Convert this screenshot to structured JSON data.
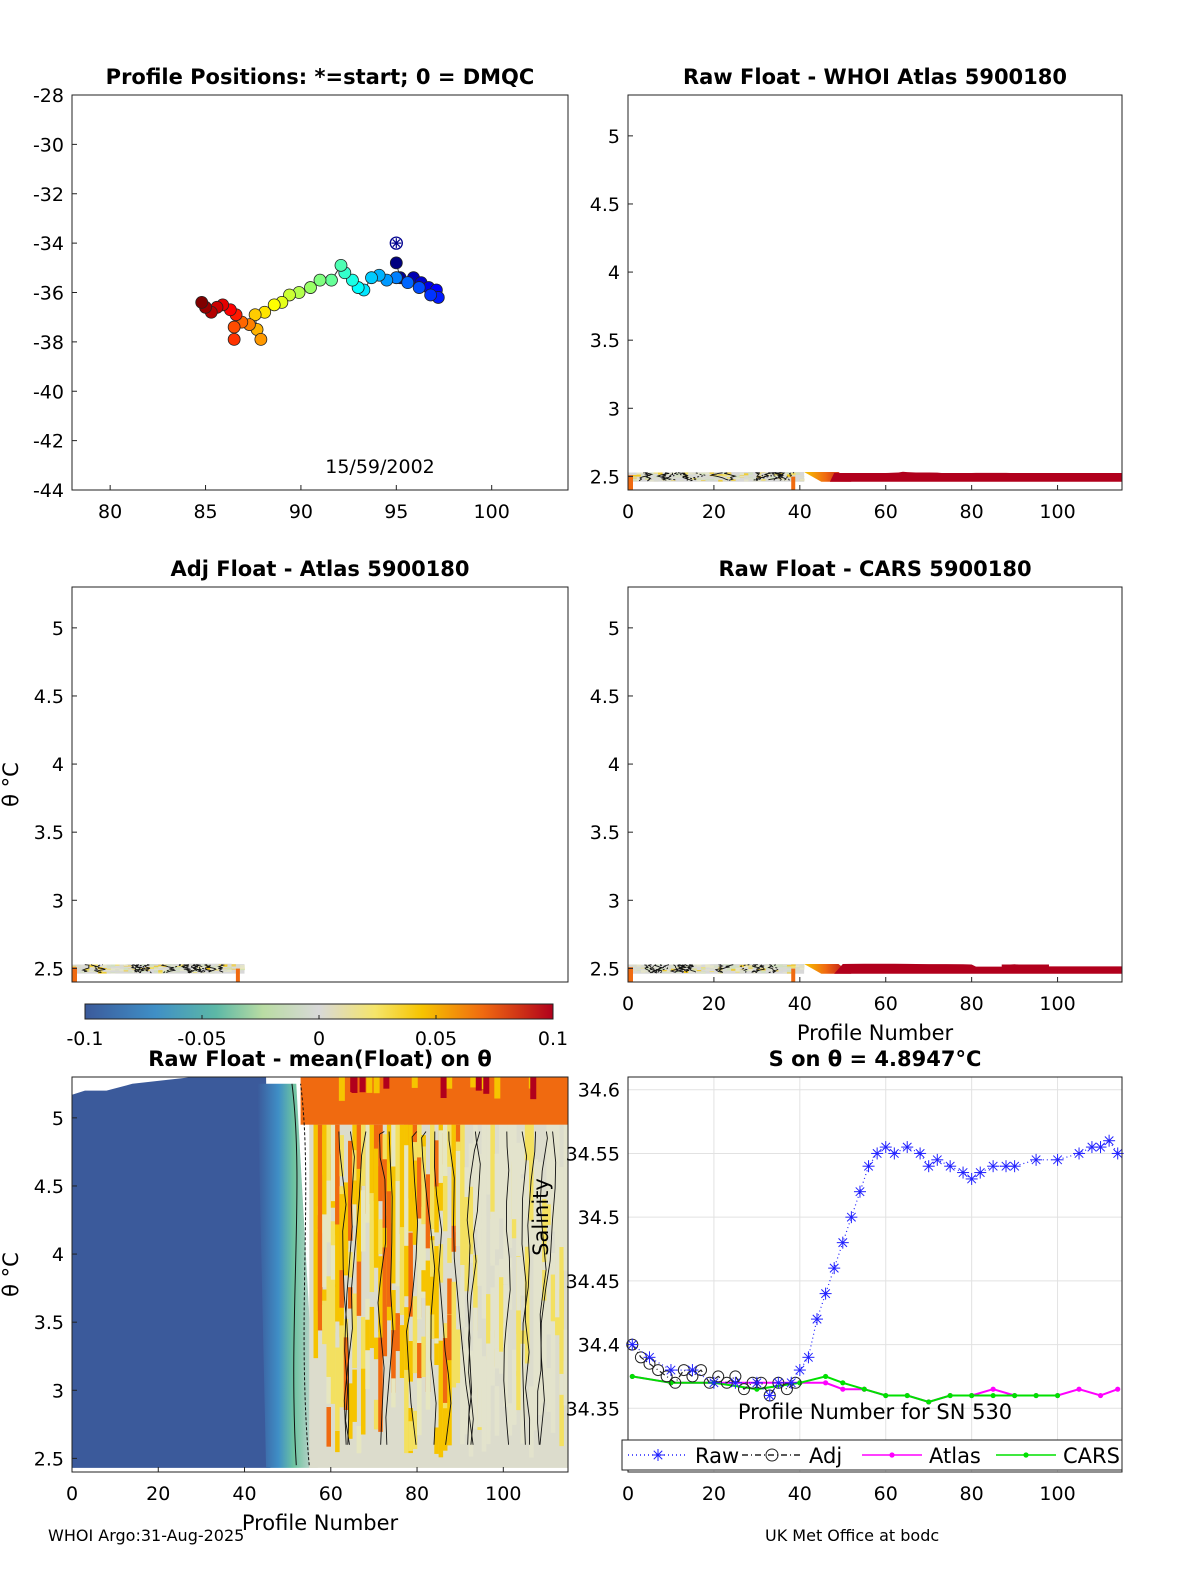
{
  "footer": {
    "left": "WHOI Argo:31-Aug-2025",
    "right": "UK Met Office at bodc"
  },
  "colors": {
    "deep_red": "#b1001c",
    "blue_fill": "#3b5a9b",
    "raw": "#2020ff",
    "adj": "#222222",
    "atlas": "#ff00ff",
    "cars": "#00e000"
  },
  "colorbar": {
    "ticks": [
      "-0.1",
      "-0.05",
      "0",
      "0.05",
      "0.1"
    ],
    "range": [
      -0.1,
      0.1
    ]
  },
  "chart_data": [
    {
      "type": "scatter",
      "title": "Profile Positions: *=start; 0 = DMQC",
      "annotation": "15/59/2002",
      "xlim": [
        78,
        104
      ],
      "ylim": [
        -44,
        -28
      ],
      "xticks": [
        "80",
        "85",
        "90",
        "95",
        "100"
      ],
      "yticks": [
        "-28",
        "-30",
        "-32",
        "-34",
        "-36",
        "-38",
        "-40",
        "-42",
        "-44"
      ],
      "start": {
        "x": 95.0,
        "y": -34.0
      },
      "points": [
        [
          95.0,
          -34.8
        ],
        [
          95.2,
          -35.4
        ],
        [
          95.9,
          -35.4
        ],
        [
          96.3,
          -35.6
        ],
        [
          96.7,
          -35.8
        ],
        [
          97.1,
          -35.9
        ],
        [
          97.2,
          -36.2
        ],
        [
          96.8,
          -36.1
        ],
        [
          96.2,
          -35.8
        ],
        [
          95.6,
          -35.6
        ],
        [
          95.0,
          -35.4
        ],
        [
          94.5,
          -35.5
        ],
        [
          94.1,
          -35.3
        ],
        [
          93.7,
          -35.4
        ],
        [
          93.3,
          -35.9
        ],
        [
          93.0,
          -35.8
        ],
        [
          92.7,
          -35.5
        ],
        [
          92.3,
          -35.2
        ],
        [
          92.1,
          -34.9
        ],
        [
          91.6,
          -35.5
        ],
        [
          91.0,
          -35.5
        ],
        [
          90.5,
          -35.8
        ],
        [
          89.9,
          -36.0
        ],
        [
          89.4,
          -36.1
        ],
        [
          89.0,
          -36.4
        ],
        [
          88.6,
          -36.5
        ],
        [
          88.1,
          -36.8
        ],
        [
          87.6,
          -36.9
        ],
        [
          87.7,
          -37.5
        ],
        [
          87.9,
          -37.9
        ],
        [
          87.3,
          -37.3
        ],
        [
          86.9,
          -37.2
        ],
        [
          86.5,
          -37.4
        ],
        [
          86.5,
          -37.9
        ],
        [
          86.6,
          -36.9
        ],
        [
          86.3,
          -36.7
        ],
        [
          85.9,
          -36.5
        ],
        [
          85.6,
          -36.6
        ],
        [
          85.3,
          -36.8
        ],
        [
          85.0,
          -36.6
        ],
        [
          84.8,
          -36.4
        ]
      ]
    },
    {
      "type": "heatmap",
      "title": "Raw Float - WHOI Atlas  5900180",
      "xlim": [
        0,
        115
      ],
      "ylim": [
        2.4,
        5.3
      ],
      "xticks": [
        "0",
        "20",
        "40",
        "60",
        "80",
        "100"
      ],
      "yticks": [
        "2.5",
        "3",
        "3.5",
        "4",
        "4.5",
        "5"
      ]
    },
    {
      "type": "heatmap",
      "title": "Adj Float - Atlas  5900180",
      "xlim": [
        0,
        115
      ],
      "ylim": [
        2.4,
        5.3
      ],
      "ylabel": "θ °C",
      "yticks": [
        "2.5",
        "3",
        "3.5",
        "4",
        "4.5",
        "5"
      ]
    },
    {
      "type": "heatmap",
      "title": "Raw Float - CARS  5900180",
      "xlim": [
        0,
        115
      ],
      "ylim": [
        2.4,
        5.3
      ],
      "xlabel": "Profile Number",
      "xticks": [
        "0",
        "20",
        "40",
        "60",
        "80",
        "100"
      ],
      "yticks": [
        "2.5",
        "3",
        "3.5",
        "4",
        "4.5",
        "5"
      ]
    },
    {
      "type": "heatmap",
      "title": "Raw Float - mean(Float) on θ",
      "xlim": [
        0,
        115
      ],
      "ylim": [
        2.4,
        5.3
      ],
      "xlabel": "Profile Number",
      "ylabel": "θ °C",
      "xticks": [
        "0",
        "20",
        "40",
        "60",
        "80",
        "100"
      ],
      "yticks": [
        "2.5",
        "3",
        "3.5",
        "4",
        "4.5",
        "5"
      ]
    },
    {
      "type": "line",
      "title": "S on θ = 4.8947°C",
      "xlabel": "Profile Number for SN 530",
      "ylabel": "Salinity",
      "xlim": [
        0,
        115
      ],
      "ylim": [
        34.3,
        34.61
      ],
      "xticks": [
        "0",
        "20",
        "40",
        "60",
        "80",
        "100"
      ],
      "yticks": [
        "34.35",
        "34.4",
        "34.45",
        "34.5",
        "34.55",
        "34.6"
      ],
      "legend": [
        "Raw",
        "Adj",
        "Atlas",
        "CARS"
      ],
      "legend_position": "below",
      "series": [
        {
          "name": "Raw",
          "x": [
            1,
            5,
            10,
            15,
            20,
            25,
            30,
            33,
            35,
            38,
            40,
            42,
            44,
            46,
            48,
            50,
            52,
            54,
            56,
            58,
            60,
            62,
            65,
            68,
            70,
            72,
            75,
            78,
            80,
            82,
            85,
            88,
            90,
            95,
            100,
            105,
            108,
            110,
            112,
            114
          ],
          "y": [
            34.4,
            34.39,
            34.38,
            34.38,
            34.37,
            34.37,
            34.37,
            34.36,
            34.37,
            34.37,
            34.38,
            34.39,
            34.42,
            34.44,
            34.46,
            34.48,
            34.5,
            34.52,
            34.54,
            34.55,
            34.555,
            34.55,
            34.555,
            34.55,
            34.54,
            34.545,
            34.54,
            34.535,
            34.53,
            34.535,
            34.54,
            34.54,
            34.54,
            34.545,
            34.545,
            34.55,
            34.555,
            34.555,
            34.56,
            34.55
          ]
        },
        {
          "name": "Adj",
          "x": [
            1,
            3,
            5,
            7,
            9,
            11,
            13,
            15,
            17,
            19,
            21,
            23,
            25,
            27,
            29,
            31,
            33,
            35,
            37,
            39
          ],
          "y": [
            34.4,
            34.39,
            34.385,
            34.38,
            34.375,
            34.37,
            34.38,
            34.375,
            34.38,
            34.37,
            34.375,
            34.37,
            34.375,
            34.365,
            34.37,
            34.37,
            34.36,
            34.37,
            34.365,
            34.37
          ]
        },
        {
          "name": "Atlas",
          "x": [
            1,
            10,
            20,
            30,
            40,
            46,
            50,
            55,
            60,
            65,
            70,
            75,
            80,
            85,
            90,
            95,
            100,
            105,
            110,
            114
          ],
          "y": [
            34.375,
            34.37,
            34.37,
            34.37,
            34.37,
            34.37,
            34.365,
            34.365,
            34.36,
            34.36,
            34.355,
            34.36,
            34.36,
            34.365,
            34.36,
            34.36,
            34.36,
            34.365,
            34.36,
            34.365
          ]
        },
        {
          "name": "CARS",
          "x": [
            1,
            10,
            20,
            30,
            40,
            46,
            50,
            55,
            60,
            65,
            70,
            75,
            80,
            85,
            90,
            95,
            100
          ],
          "y": [
            34.375,
            34.37,
            34.37,
            34.365,
            34.37,
            34.375,
            34.37,
            34.365,
            34.36,
            34.36,
            34.355,
            34.36,
            34.36,
            34.36,
            34.36,
            34.36,
            34.36
          ]
        }
      ]
    }
  ]
}
